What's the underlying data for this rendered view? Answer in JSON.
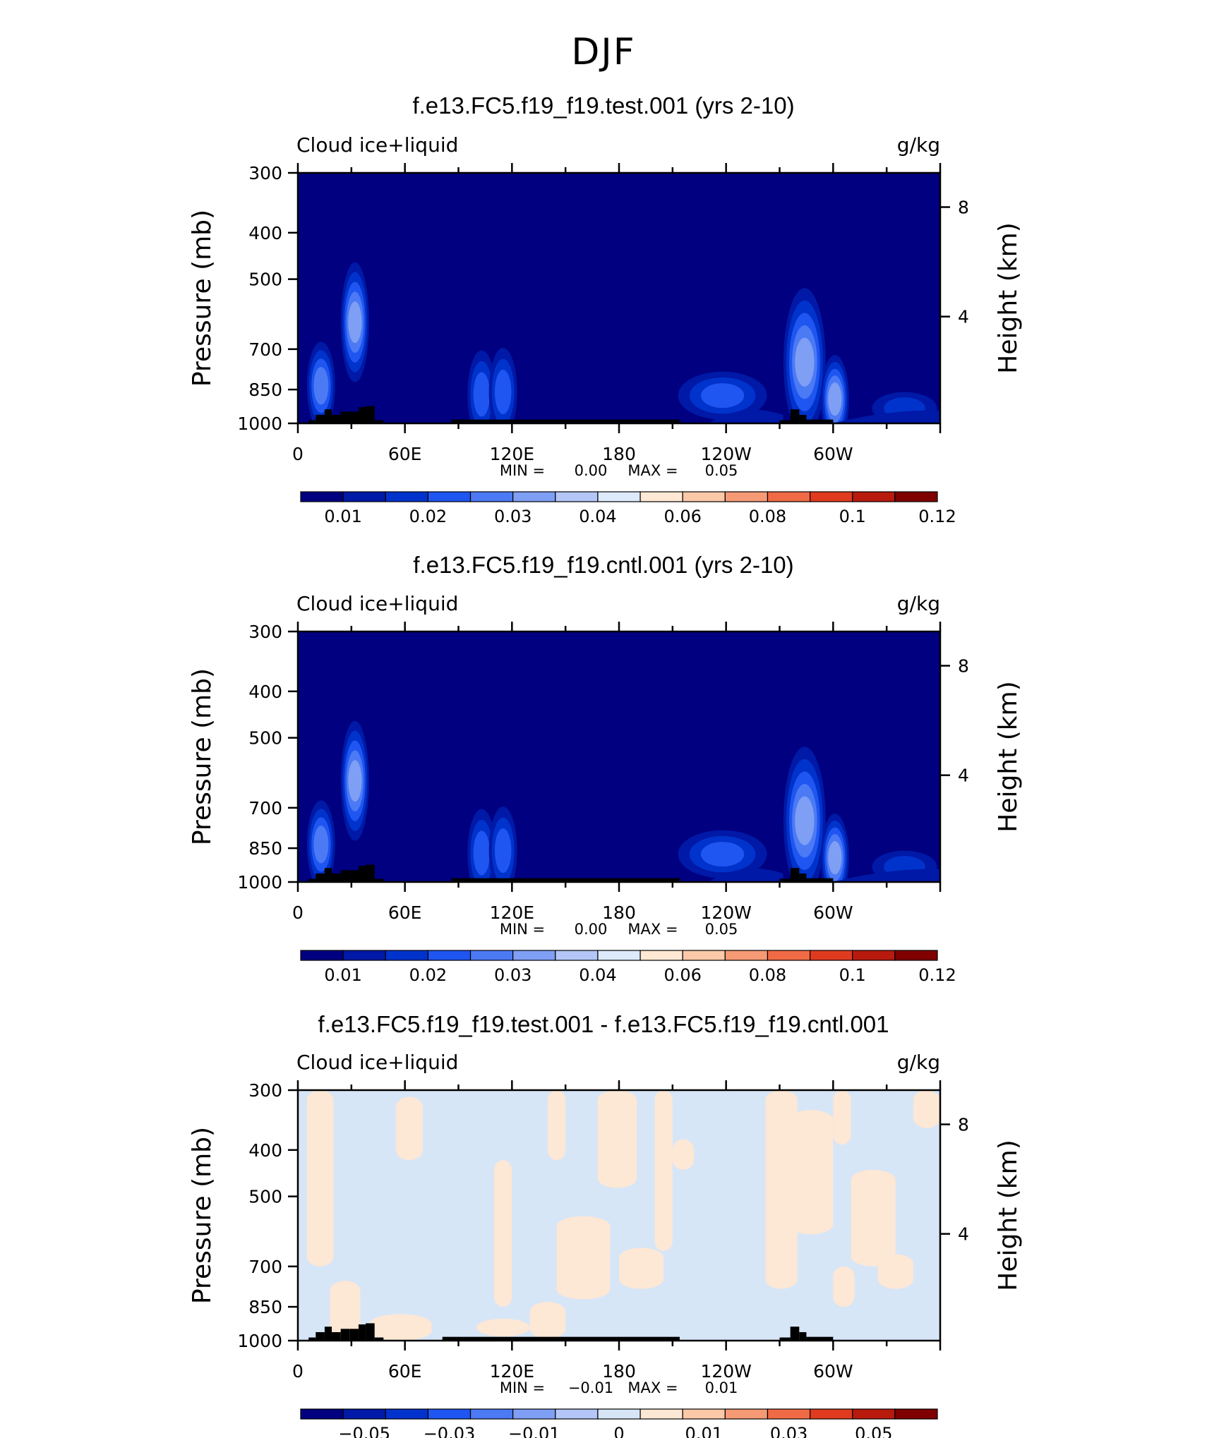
{
  "main_title": "DJF",
  "colors": {
    "full_scale": [
      "#000080",
      "#0019A6",
      "#0033CC",
      "#1F55F0",
      "#4C7AF5",
      "#7F9FF5",
      "#B3C6F7",
      "#DCEAFC",
      "#FFE8D4",
      "#FCC9A8",
      "#F59A75",
      "#F06B45",
      "#E03B1F",
      "#B81A0D",
      "#800000"
    ],
    "diff_scale": [
      "#000080",
      "#0019A6",
      "#0033CC",
      "#1F55F0",
      "#4C7AF5",
      "#7F9FF5",
      "#B3C6F7",
      "#D6E6F7",
      "#FDE7D5",
      "#FCC9A8",
      "#F59A75",
      "#F06B45",
      "#E03B1F",
      "#B81A0D",
      "#800000"
    ],
    "topography": "#000000"
  },
  "chart_data": [
    {
      "type": "heatmap",
      "title": "f.e13.FC5.f19_f19.test.001 (yrs 2-10)",
      "left_label": "Cloud ice+liquid",
      "right_label": "g/kg",
      "ylabel": "Pressure (mb)",
      "right_ylabel": "Height (km)",
      "x_ticks": [
        "0",
        "60E",
        "120E",
        "180",
        "120W",
        "60W"
      ],
      "y_ticks": [
        "300",
        "400",
        "500",
        "700",
        "850",
        "1000"
      ],
      "height_ticks": [
        "8",
        "4"
      ],
      "stats": {
        "min_label": "MIN =",
        "min_value": "0.00",
        "max_label": "MAX =",
        "max_value": "0.05"
      },
      "colorbar_labels": [
        "0.01",
        "0.02",
        "0.03",
        "0.04",
        "0.06",
        "0.08",
        "0.1",
        "0.12"
      ],
      "features": [
        {
          "lon": 13,
          "p": 835,
          "value": 0.04
        },
        {
          "lon": 32,
          "p": 615,
          "value": 0.05
        },
        {
          "lon": 103,
          "p": 870,
          "value": 0.03
        },
        {
          "lon": 115,
          "p": 860,
          "value": 0.03
        },
        {
          "lon": 238,
          "p": 875,
          "value": 0.03
        },
        {
          "lon": 284,
          "p": 745,
          "value": 0.05
        },
        {
          "lon": 301,
          "p": 890,
          "value": 0.05
        },
        {
          "lon": 340,
          "p": 930,
          "value": 0.02
        }
      ]
    },
    {
      "type": "heatmap",
      "title": "f.e13.FC5.f19_f19.cntl.001 (yrs 2-10)",
      "left_label": "Cloud ice+liquid",
      "right_label": "g/kg",
      "ylabel": "Pressure (mb)",
      "right_ylabel": "Height (km)",
      "x_ticks": [
        "0",
        "60E",
        "120E",
        "180",
        "120W",
        "60W"
      ],
      "y_ticks": [
        "300",
        "400",
        "500",
        "700",
        "850",
        "1000"
      ],
      "height_ticks": [
        "8",
        "4"
      ],
      "stats": {
        "min_label": "MIN =",
        "min_value": "0.00",
        "max_label": "MAX =",
        "max_value": "0.05"
      },
      "colorbar_labels": [
        "0.01",
        "0.02",
        "0.03",
        "0.04",
        "0.06",
        "0.08",
        "0.1",
        "0.12"
      ],
      "features": [
        {
          "lon": 13,
          "p": 835,
          "value": 0.04
        },
        {
          "lon": 32,
          "p": 615,
          "value": 0.05
        },
        {
          "lon": 103,
          "p": 870,
          "value": 0.03
        },
        {
          "lon": 115,
          "p": 860,
          "value": 0.03
        },
        {
          "lon": 238,
          "p": 875,
          "value": 0.03
        },
        {
          "lon": 284,
          "p": 745,
          "value": 0.05
        },
        {
          "lon": 301,
          "p": 890,
          "value": 0.05
        },
        {
          "lon": 340,
          "p": 930,
          "value": 0.02
        }
      ]
    },
    {
      "type": "heatmap",
      "title": "f.e13.FC5.f19_f19.test.001 - f.e13.FC5.f19_f19.cntl.001",
      "left_label": "Cloud ice+liquid",
      "right_label": "g/kg",
      "ylabel": "Pressure (mb)",
      "right_ylabel": "Height (km)",
      "x_ticks": [
        "0",
        "60E",
        "120E",
        "180",
        "120W",
        "60W"
      ],
      "y_ticks": [
        "300",
        "400",
        "500",
        "700",
        "850",
        "1000"
      ],
      "height_ticks": [
        "8",
        "4"
      ],
      "stats": {
        "min_label": "MIN =",
        "min_value": "−0.01",
        "max_label": "MAX =",
        "max_value": "0.01"
      },
      "colorbar_labels": [
        "−0.05",
        "−0.03",
        "−0.01",
        "0",
        "0.01",
        "0.03",
        "0.05"
      ],
      "features": [
        {
          "lon": 20,
          "p": 800,
          "value": 0.005
        },
        {
          "lon": 85,
          "p": 600,
          "value": 0.005
        },
        {
          "lon": 145,
          "p": 500,
          "value": 0.005
        },
        {
          "lon": 215,
          "p": 450,
          "value": 0.005
        },
        {
          "lon": 275,
          "p": 650,
          "value": 0.005
        },
        {
          "lon": 340,
          "p": 550,
          "value": 0.005
        }
      ]
    }
  ]
}
